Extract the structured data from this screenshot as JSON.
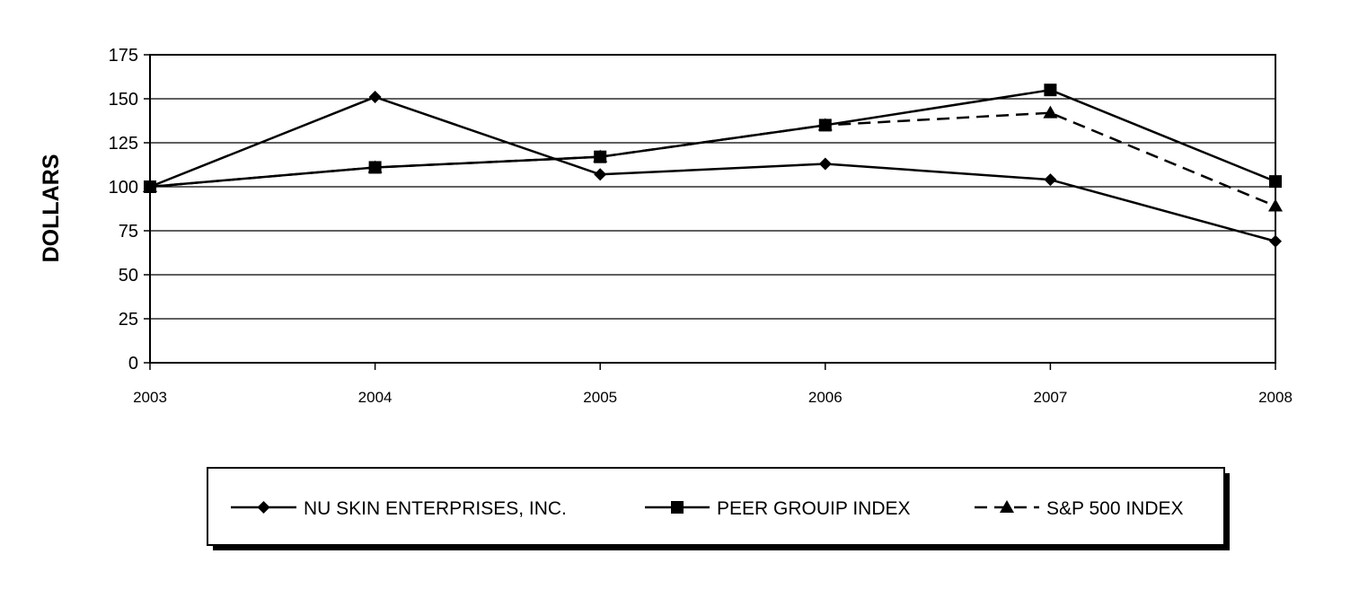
{
  "chart_data": {
    "type": "line",
    "title": "",
    "xlabel": "",
    "ylabel": "DOLLARS",
    "x": [
      "2003",
      "2004",
      "2005",
      "2006",
      "2007",
      "2008"
    ],
    "ylim": [
      0,
      175
    ],
    "yticks": [
      0,
      25,
      50,
      75,
      100,
      125,
      150,
      175
    ],
    "grid": true,
    "legend_position": "bottom",
    "series": [
      {
        "name": "NU SKIN ENTERPRISES, INC.",
        "marker": "diamond",
        "line_style": "solid",
        "color": "#000000",
        "values": [
          100,
          151,
          107,
          113,
          104,
          69
        ]
      },
      {
        "name": "PEER GROUIP INDEX",
        "marker": "square",
        "line_style": "solid",
        "color": "#000000",
        "values": [
          100,
          111,
          117,
          135,
          155,
          103
        ]
      },
      {
        "name": "S&P 500 INDEX",
        "marker": "triangle",
        "line_style": "dashed",
        "color": "#000000",
        "values": [
          100,
          111,
          117,
          135,
          142,
          89
        ]
      }
    ]
  }
}
